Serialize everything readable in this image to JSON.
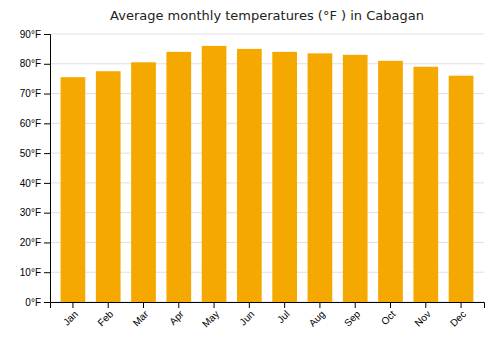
{
  "chart_data": {
    "type": "bar",
    "title": "Average monthly temperatures (°F ) in Cabagan",
    "categories": [
      "Jan",
      "Feb",
      "Mar",
      "Apr",
      "May",
      "Jun",
      "Jul",
      "Aug",
      "Sep",
      "Oct",
      "Nov",
      "Dec"
    ],
    "values": [
      75.5,
      77.5,
      80.5,
      84.0,
      86.0,
      85.0,
      84.0,
      83.5,
      83.0,
      81.0,
      79.0,
      76.0
    ],
    "color": "#F5A800",
    "ylim": [
      0,
      90
    ],
    "yticks": [
      {
        "value": 0,
        "label": "0°F"
      },
      {
        "value": 10,
        "label": "10°F"
      },
      {
        "value": 20,
        "label": "20°F"
      },
      {
        "value": 30,
        "label": "30°F"
      },
      {
        "value": 40,
        "label": "40°F"
      },
      {
        "value": 50,
        "label": "50°F"
      },
      {
        "value": 60,
        "label": "60°F"
      },
      {
        "value": 70,
        "label": "70°F"
      },
      {
        "value": 80,
        "label": "80°F"
      },
      {
        "value": 90,
        "label": "90°F"
      }
    ],
    "grid": true
  }
}
